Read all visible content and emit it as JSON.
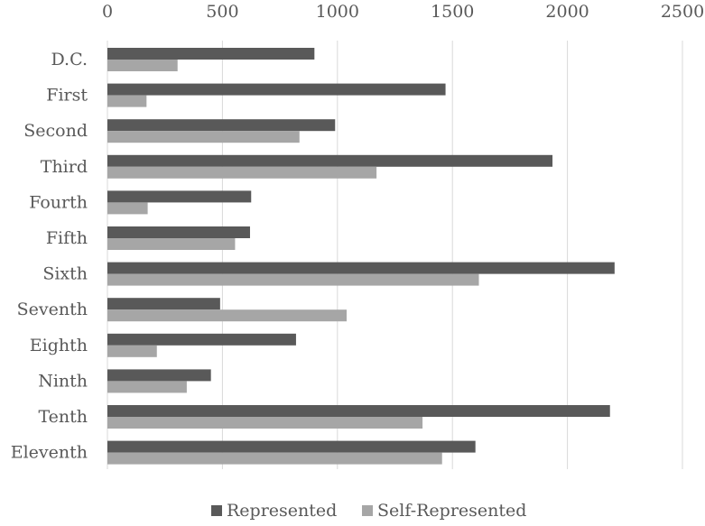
{
  "chart_data": {
    "type": "bar",
    "orientation": "horizontal",
    "categories": [
      "D.C.",
      "First",
      "Second",
      "Third",
      "Fourth",
      "Fifth",
      "Sixth",
      "Seventh",
      "Eighth",
      "Ninth",
      "Tenth",
      "Eleventh"
    ],
    "series": [
      {
        "name": "Represented",
        "color": "#595959",
        "values": [
          900,
          1470,
          990,
          1935,
          625,
          620,
          2205,
          490,
          820,
          450,
          2185,
          1600
        ]
      },
      {
        "name": "Self-Represented",
        "color": "#a6a6a6",
        "values": [
          305,
          170,
          835,
          1170,
          175,
          555,
          1615,
          1040,
          215,
          345,
          1370,
          1455
        ]
      }
    ],
    "xlim": [
      0,
      2500
    ],
    "xticks": [
      0,
      500,
      1000,
      1500,
      2000,
      2500
    ],
    "x_axis_position": "top",
    "grid": true,
    "legend_position": "bottom",
    "title": "",
    "xlabel": "",
    "ylabel": ""
  }
}
